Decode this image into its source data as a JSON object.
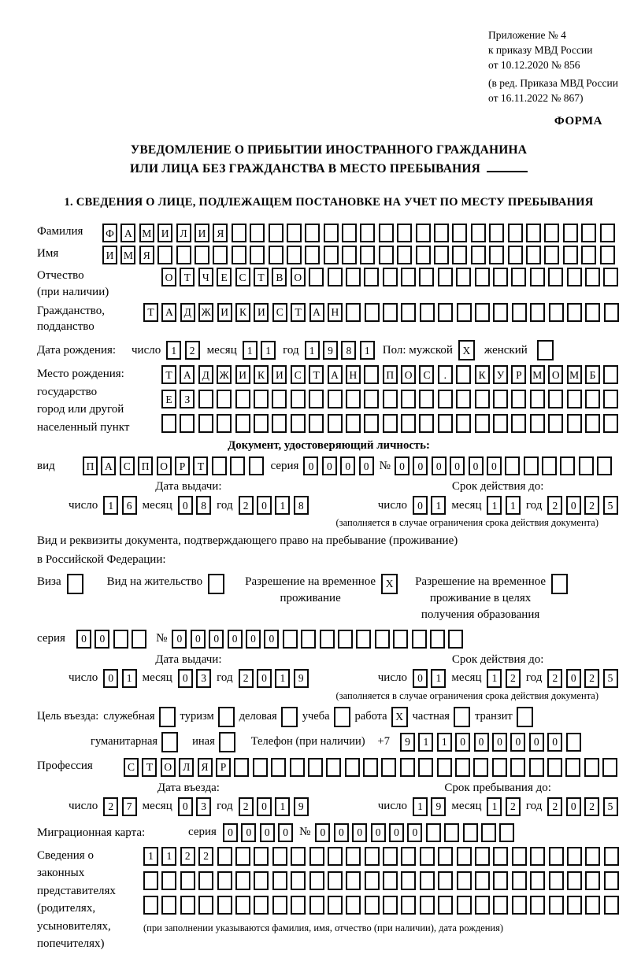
{
  "header": {
    "appendix_line1": "Приложение № 4",
    "appendix_line2": "к приказу МВД России",
    "appendix_line3": "от 10.12.2020 № 856",
    "edition_line1": "(в ред. Приказа МВД России",
    "edition_line2": "от 16.11.2022 № 867)",
    "forma_label": "ФОРМА"
  },
  "title": {
    "line1": "УВЕДОМЛЕНИЕ О ПРИБЫТИИ ИНОСТРАННОГО ГРАЖДАНИНА",
    "line2": "ИЛИ ЛИЦА БЕЗ ГРАЖДАНСТВА В МЕСТО ПРЕБЫВАНИЯ"
  },
  "section1_heading": "1. СВЕДЕНИЯ О ЛИЦЕ, ПОДЛЕЖАЩЕМ ПОСТАНОВКЕ НА УЧЕТ ПО МЕСТУ ПРЕБЫВАНИЯ",
  "labels": {
    "day": "число",
    "month": "месяц",
    "year": "год",
    "seriya": "серия",
    "number": "№",
    "validity_note": "(заполняется в случае ограничения срока действия документа)"
  },
  "person": {
    "surname_label": "Фамилия",
    "surname": {
      "value": "ФАМИЛИЯ",
      "count": 28
    },
    "name_label": "Имя",
    "name": {
      "value": "ИМЯ",
      "count": 28
    },
    "patronymic_label": "Отчество",
    "patronymic_sublabel": "(при наличии)",
    "patronymic": {
      "value": "ОТЧЕСТВО",
      "count": 25
    },
    "citizenship_label1": "Гражданство,",
    "citizenship_label2": "подданство",
    "citizenship": {
      "value": "ТАДЖИКИСТАН",
      "count": 26
    },
    "birthdate_label": "Дата рождения:",
    "birth_day": {
      "value": "12",
      "count": 2
    },
    "birth_month": {
      "value": "11",
      "count": 2
    },
    "birth_year": {
      "value": "1981",
      "count": 4
    },
    "sex_label": "Пол: мужской",
    "sex_male": {
      "value": "X",
      "count": 1
    },
    "sex_female_label": "женский",
    "sex_female": {
      "value": "",
      "count": 1
    },
    "birthplace_label1": "Место рождения:",
    "birthplace_label2": "государство",
    "birthplace_label3": "город или другой",
    "birthplace_label4": "населенный пункт",
    "birthplace_row1": {
      "value": "ТАДЖИКИСТАН ПОС. КУРМОМБ",
      "count": 25
    },
    "birthplace_row2": {
      "value": "ЕЗ",
      "count": 25
    },
    "birthplace_row3": {
      "value": "",
      "count": 25
    }
  },
  "identity_doc": {
    "heading": "Документ, удостоверяющий личность:",
    "type_label": "вид",
    "type": {
      "value": "ПАСПОРТ",
      "count": 10
    },
    "seriya": {
      "value": "0000",
      "count": 4
    },
    "number": {
      "value": "000000",
      "count": 12
    },
    "issue_title": "Дата выдачи:",
    "issue_day": {
      "value": "16",
      "count": 2
    },
    "issue_month": {
      "value": "08",
      "count": 2
    },
    "issue_year": {
      "value": "2018",
      "count": 4
    },
    "valid_title": "Срок действия до:",
    "valid_day": {
      "value": "01",
      "count": 2
    },
    "valid_month": {
      "value": "11",
      "count": 2
    },
    "valid_year": {
      "value": "2025",
      "count": 4
    }
  },
  "residence_doc": {
    "line1": "Вид и реквизиты документа, подтверждающего право на пребывание (проживание)",
    "line2": "в Российской Федерации:",
    "visa_label": "Виза",
    "visa": {
      "value": "",
      "count": 1
    },
    "permit_label": "Вид на жительство",
    "permit": {
      "value": "",
      "count": 1
    },
    "temp_label1": "Разрешение на временное",
    "temp_label2": "проживание",
    "temp": {
      "value": "X",
      "count": 1
    },
    "edu_label1": "Разрешение на временное",
    "edu_label2": "проживание в целях",
    "edu_label3": "получения образования",
    "edu": {
      "value": "",
      "count": 1
    },
    "seriya": {
      "value": "00",
      "count": 4
    },
    "number": {
      "value": "000000",
      "count": 16
    },
    "issue_title": "Дата выдачи:",
    "issue_day": {
      "value": "01",
      "count": 2
    },
    "issue_month": {
      "value": "03",
      "count": 2
    },
    "issue_year": {
      "value": "2019",
      "count": 4
    },
    "valid_title": "Срок действия до:",
    "valid_day": {
      "value": "01",
      "count": 2
    },
    "valid_month": {
      "value": "12",
      "count": 2
    },
    "valid_year": {
      "value": "2025",
      "count": 4
    }
  },
  "visit": {
    "purpose_label": "Цель въезда:",
    "purpose_options": [
      {
        "label": "служебная",
        "box": {
          "value": "",
          "count": 1
        }
      },
      {
        "label": "туризм",
        "box": {
          "value": "",
          "count": 1
        }
      },
      {
        "label": "деловая",
        "box": {
          "value": "",
          "count": 1
        }
      },
      {
        "label": "учеба",
        "box": {
          "value": "",
          "count": 1
        }
      },
      {
        "label": "работа",
        "box": {
          "value": "X",
          "count": 1
        }
      },
      {
        "label": "частная",
        "box": {
          "value": "",
          "count": 1
        }
      },
      {
        "label": "транзит",
        "box": {
          "value": "",
          "count": 1
        }
      }
    ],
    "purpose_row2": [
      {
        "label": "гуманитарная",
        "box": {
          "value": "",
          "count": 1
        }
      },
      {
        "label": "иная",
        "box": {
          "value": "",
          "count": 1
        }
      }
    ],
    "phone_label": "Телефон (при наличии)",
    "phone_prefix": "+7",
    "phone": {
      "value": "911000000",
      "count": 10
    },
    "profession_label": "Профессия",
    "profession": {
      "value": "СТОЛЯР",
      "count": 27
    },
    "entry_title": "Дата въезда:",
    "entry_day": {
      "value": "27",
      "count": 2
    },
    "entry_month": {
      "value": "03",
      "count": 2
    },
    "entry_year": {
      "value": "2019",
      "count": 4
    },
    "stay_title": "Срок пребывания до:",
    "stay_day": {
      "value": "19",
      "count": 2
    },
    "stay_month": {
      "value": "12",
      "count": 2
    },
    "stay_year": {
      "value": "2025",
      "count": 4
    },
    "migration_label": "Миграционная карта:",
    "mc_seriya": {
      "value": "0000",
      "count": 4
    },
    "mc_number": {
      "value": "000000",
      "count": 11
    },
    "rep_label1": "Сведения о",
    "rep_label2": "законных",
    "rep_label3": "представителях",
    "rep_label4": "(родителях,",
    "rep_label5": "усыновителях,",
    "rep_label6": "попечителях)",
    "rep_row1": {
      "value": "1122",
      "count": 26
    },
    "rep_row2": {
      "value": "",
      "count": 26
    },
    "rep_row3": {
      "value": "",
      "count": 26
    },
    "rep_note": "(при заполнении указываются фамилия, имя, отчество (при наличии), дата рождения)"
  }
}
